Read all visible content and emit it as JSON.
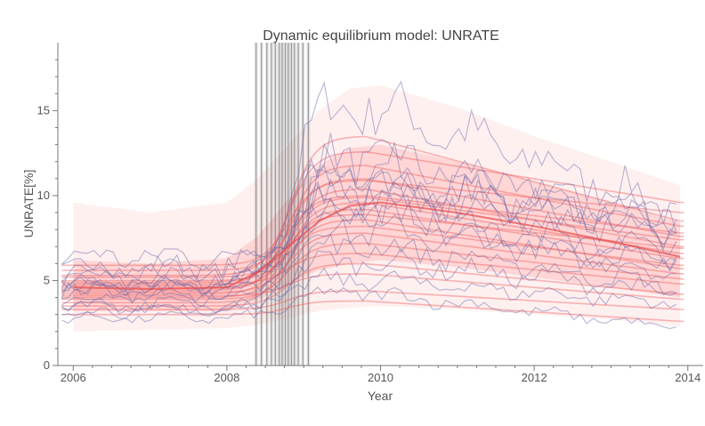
{
  "chart_data": {
    "type": "line",
    "title": "Dynamic equilibrium model: UNRATE",
    "xlabel": "Year",
    "ylabel": "UNRATE[%]",
    "xlim": [
      2005.8,
      2014.2
    ],
    "ylim": [
      0,
      19
    ],
    "x_ticks": [
      "2006",
      "2008",
      "2010",
      "2012",
      "2014"
    ],
    "x_tick_values": [
      2006,
      2008,
      2010,
      2012,
      2014
    ],
    "y_ticks": [
      "0",
      "5",
      "10",
      "15"
    ],
    "y_tick_values": [
      0,
      5,
      10,
      15
    ],
    "grid": false,
    "model_median": {
      "x": [
        2006.0,
        2007.0,
        2008.0,
        2008.4,
        2008.8,
        2009.2,
        2009.6,
        2010.0,
        2011.0,
        2012.0,
        2013.0,
        2013.9
      ],
      "y": [
        4.6,
        4.5,
        4.6,
        5.5,
        7.0,
        8.5,
        9.4,
        9.6,
        9.0,
        8.2,
        7.3,
        6.4
      ]
    },
    "band_outer": {
      "x": [
        2006.0,
        2007.0,
        2008.0,
        2008.4,
        2008.8,
        2009.2,
        2009.6,
        2010.0,
        2011.0,
        2012.0,
        2013.0,
        2013.9
      ],
      "upper": [
        9.6,
        9.0,
        9.6,
        11.0,
        13.0,
        15.0,
        16.3,
        16.5,
        15.2,
        13.5,
        12.0,
        10.6
      ],
      "lower": [
        2.0,
        2.1,
        2.2,
        2.4,
        2.8,
        3.2,
        3.4,
        3.5,
        3.3,
        3.0,
        2.7,
        2.3
      ]
    },
    "band_inner": {
      "x": [
        2006.0,
        2007.0,
        2008.0,
        2008.4,
        2008.8,
        2009.2,
        2009.6,
        2010.0,
        2011.0,
        2012.0,
        2013.0,
        2013.9
      ],
      "upper": [
        6.2,
        6.0,
        6.3,
        7.6,
        9.8,
        11.8,
        12.8,
        13.0,
        12.0,
        10.8,
        9.6,
        8.4
      ],
      "lower": [
        3.2,
        3.2,
        3.2,
        3.8,
        4.8,
        5.6,
        6.0,
        6.2,
        5.8,
        5.2,
        4.6,
        4.0
      ]
    },
    "model_paths": [
      {
        "pre": 4.7,
        "peak": 13.5,
        "end": 8.5
      },
      {
        "pre": 5.3,
        "peak": 12.6,
        "end": 9.6
      },
      {
        "pre": 4.4,
        "peak": 11.8,
        "end": 8.2
      },
      {
        "pre": 4.9,
        "peak": 11.0,
        "end": 7.6
      },
      {
        "pre": 4.2,
        "peak": 10.4,
        "end": 7.0
      },
      {
        "pre": 5.6,
        "peak": 10.0,
        "end": 7.8
      },
      {
        "pre": 4.0,
        "peak": 9.6,
        "end": 6.6
      },
      {
        "pre": 4.6,
        "peak": 9.2,
        "end": 6.3
      },
      {
        "pre": 3.7,
        "peak": 8.6,
        "end": 5.7
      },
      {
        "pre": 5.0,
        "peak": 8.2,
        "end": 5.9
      },
      {
        "pre": 4.3,
        "peak": 7.8,
        "end": 5.4
      },
      {
        "pre": 3.9,
        "peak": 7.2,
        "end": 5.1
      },
      {
        "pre": 4.8,
        "peak": 6.6,
        "end": 4.8
      },
      {
        "pre": 3.5,
        "peak": 6.0,
        "end": 4.2
      },
      {
        "pre": 4.1,
        "peak": 5.4,
        "end": 3.9
      },
      {
        "pre": 3.3,
        "peak": 4.4,
        "end": 3.3
      },
      {
        "pre": 3.0,
        "peak": 3.8,
        "end": 2.6
      },
      {
        "pre": 5.9,
        "peak": 10.9,
        "end": 9.0
      },
      {
        "pre": 4.5,
        "peak": 9.9,
        "end": 7.4
      },
      {
        "pre": 5.2,
        "peak": 8.9,
        "end": 6.9
      }
    ],
    "sample_paths": [
      {
        "pre": 4.6,
        "peak": 15.4,
        "end": 9.2
      },
      {
        "pre": 5.8,
        "peak": 12.4,
        "end": 8.6
      },
      {
        "pre": 4.3,
        "peak": 11.9,
        "end": 7.2
      },
      {
        "pre": 5.1,
        "peak": 11.0,
        "end": 8.1
      },
      {
        "pre": 4.0,
        "peak": 10.2,
        "end": 6.5
      },
      {
        "pre": 6.4,
        "peak": 9.8,
        "end": 7.9
      },
      {
        "pre": 4.8,
        "peak": 9.3,
        "end": 6.1
      },
      {
        "pre": 3.6,
        "peak": 8.8,
        "end": 5.3
      },
      {
        "pre": 4.9,
        "peak": 8.0,
        "end": 6.0
      },
      {
        "pre": 3.2,
        "peak": 7.1,
        "end": 4.6
      },
      {
        "pre": 4.4,
        "peak": 6.2,
        "end": 4.3
      },
      {
        "pre": 3.4,
        "peak": 5.1,
        "end": 3.6
      },
      {
        "pre": 2.8,
        "peak": 4.3,
        "end": 2.2
      },
      {
        "pre": 5.5,
        "peak": 10.6,
        "end": 8.8
      }
    ],
    "shocks": [
      2008.38,
      2008.45,
      2008.52,
      2008.58,
      2008.63,
      2008.68,
      2008.72,
      2008.76,
      2008.8,
      2008.84,
      2008.88,
      2008.93,
      2008.99,
      2009.06
    ]
  }
}
